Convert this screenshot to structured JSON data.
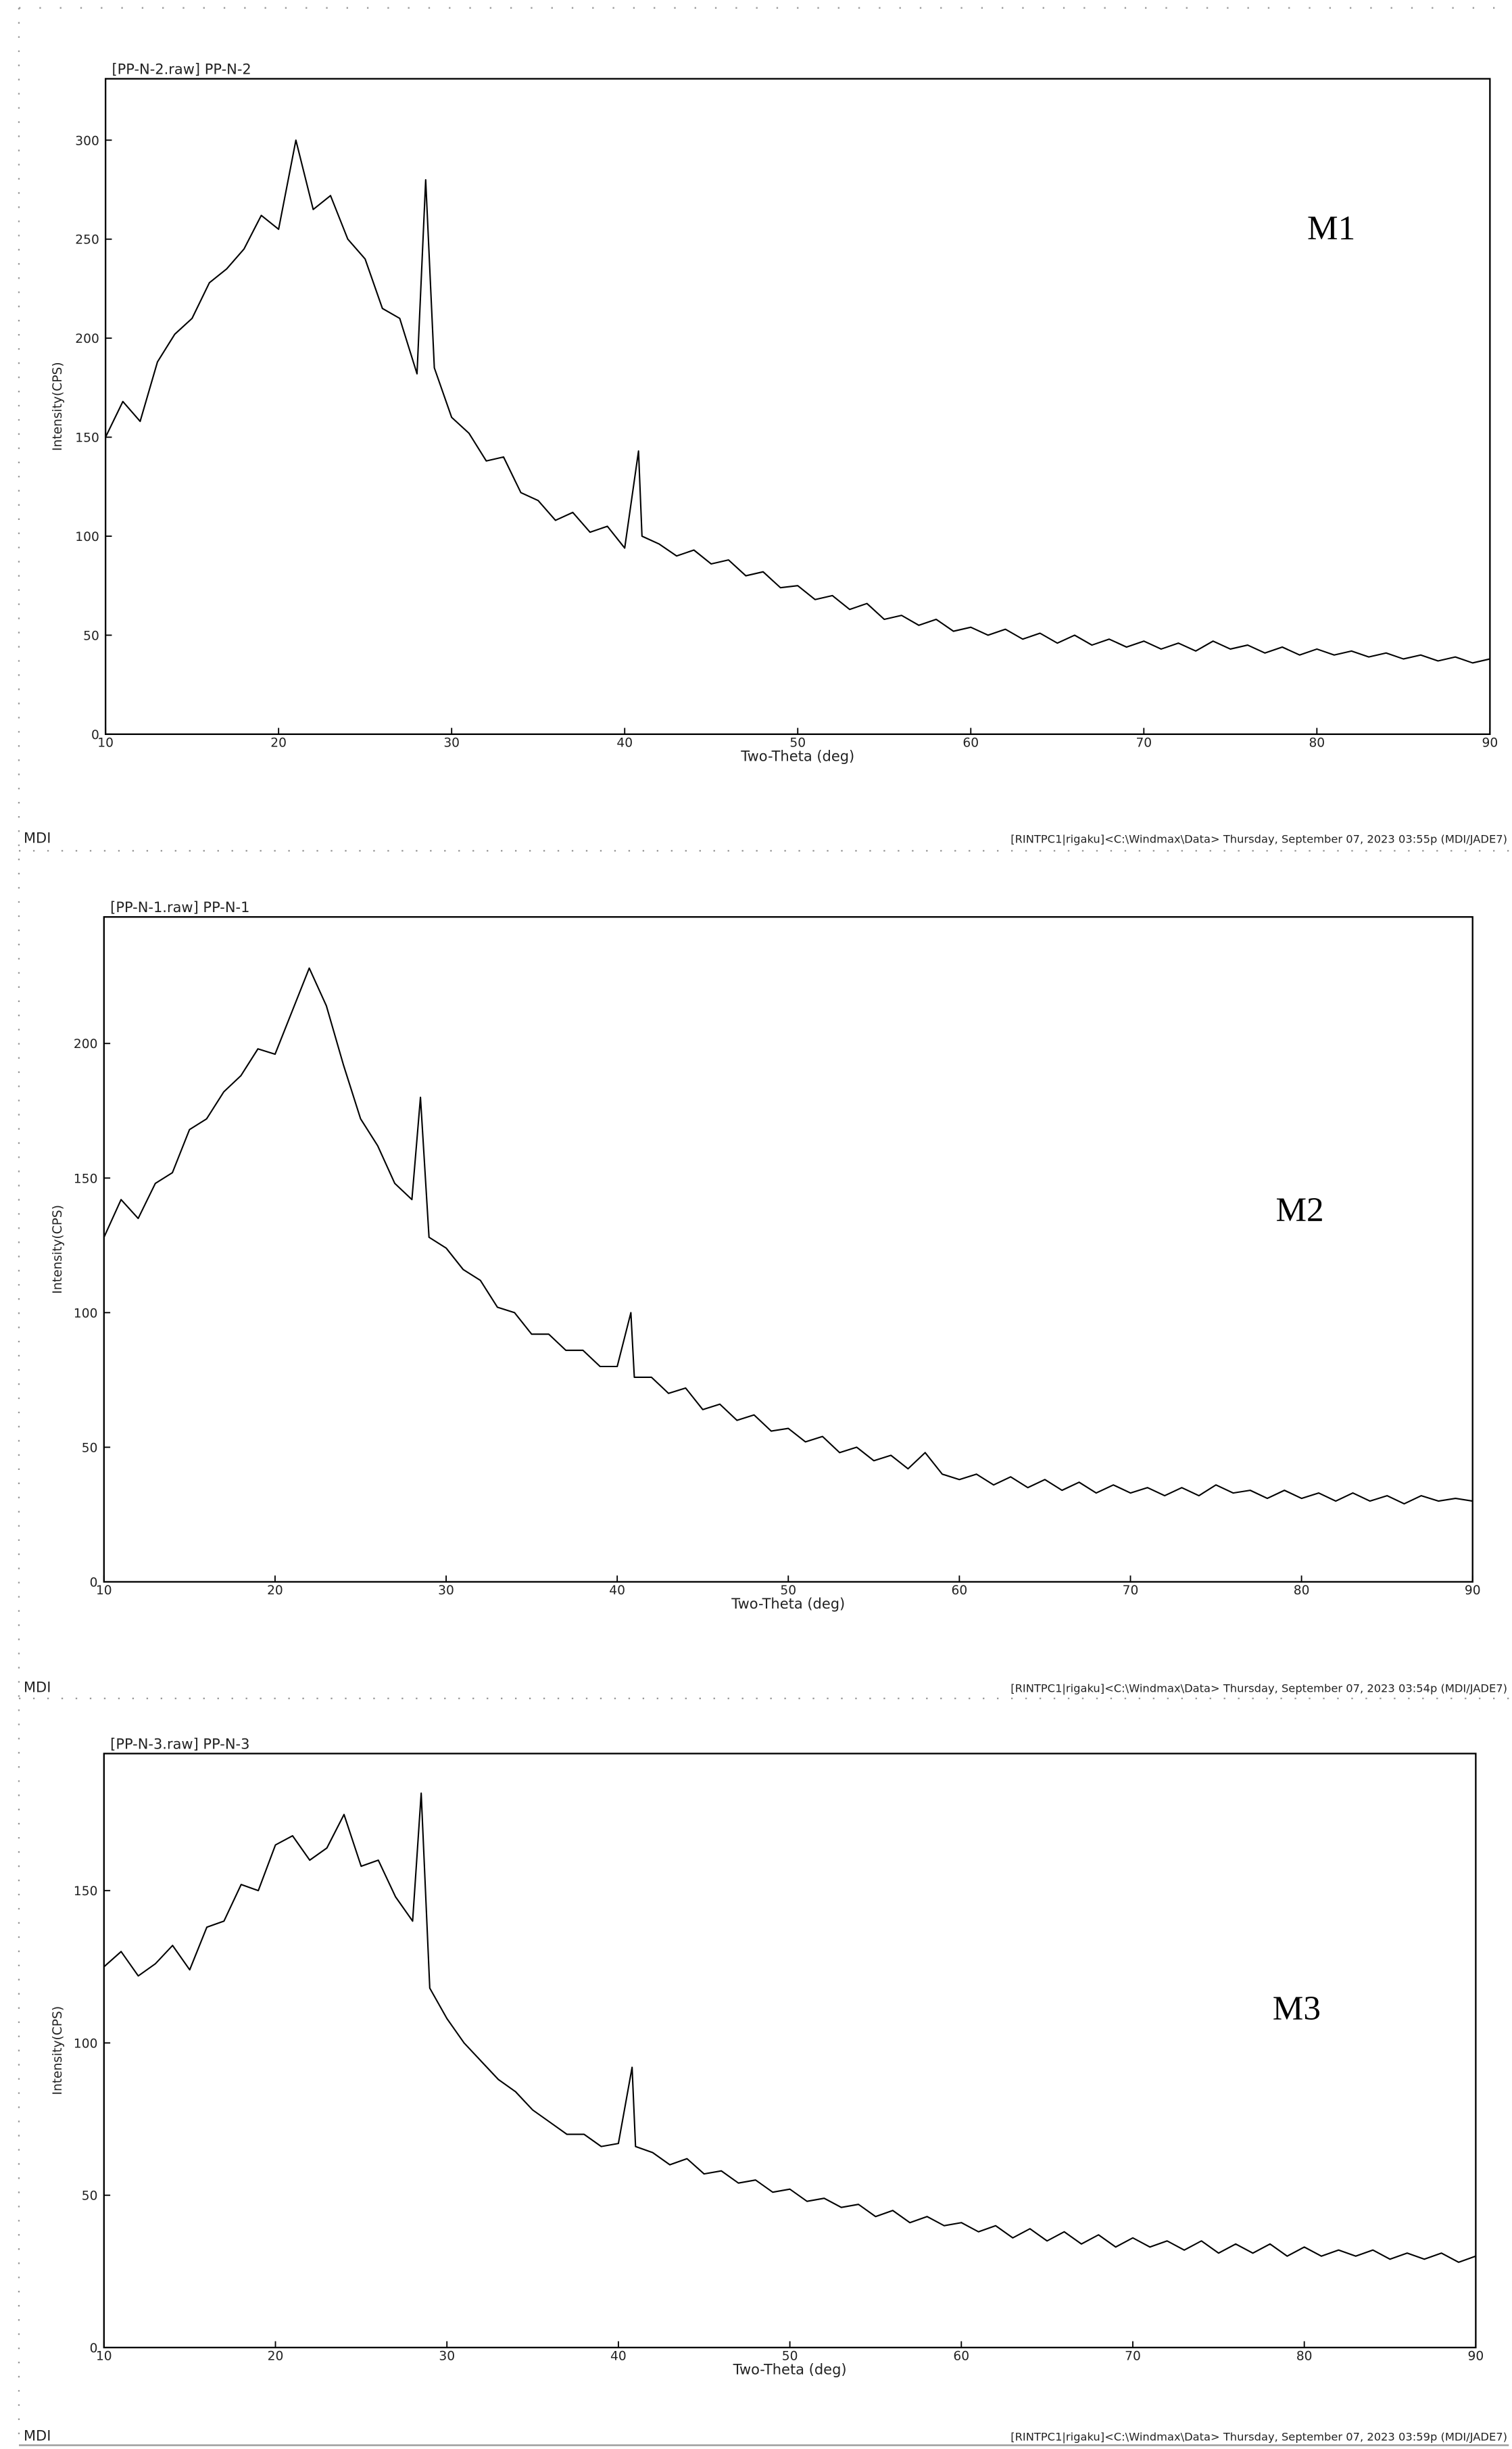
{
  "chart_data": [
    {
      "type": "line",
      "title": "[PP-N-2.raw] PP-N-2",
      "annotation": "M1",
      "xlabel": "Two-Theta (deg)",
      "ylabel": "Intensity(CPS)",
      "footer_left": "MDI",
      "footer_right": "[RINTPC1|rigaku]<C:\\Windmax\\Data> Thursday, September 07, 2023 03:55p (MDI/JADE7)",
      "color": "#000000",
      "xlim": [
        10,
        90
      ],
      "xticks": [
        10,
        20,
        30,
        40,
        50,
        60,
        70,
        80,
        90
      ],
      "ylim": [
        0,
        331
      ],
      "yticks": [
        0,
        50,
        100,
        150,
        200,
        250,
        300
      ],
      "x": [
        10,
        11,
        12,
        13,
        14,
        15,
        16,
        17,
        18,
        19,
        20,
        21,
        22,
        23,
        24,
        25,
        26,
        27,
        28,
        28.5,
        29,
        30,
        31,
        32,
        33,
        34,
        35,
        36,
        37,
        38,
        39,
        40,
        40.8,
        41,
        42,
        43,
        44,
        45,
        46,
        47,
        48,
        49,
        50,
        51,
        52,
        53,
        54,
        55,
        56,
        57,
        58,
        59,
        60,
        61,
        62,
        63,
        64,
        65,
        66,
        67,
        68,
        69,
        70,
        71,
        72,
        73,
        74,
        75,
        76,
        77,
        78,
        79,
        80,
        81,
        82,
        83,
        84,
        85,
        86,
        87,
        88,
        89,
        90
      ],
      "values": [
        150,
        168,
        158,
        188,
        202,
        210,
        228,
        235,
        245,
        262,
        255,
        300,
        265,
        272,
        250,
        240,
        215,
        210,
        182,
        280,
        185,
        160,
        152,
        138,
        140,
        122,
        118,
        108,
        112,
        102,
        105,
        94,
        143,
        100,
        96,
        90,
        93,
        86,
        88,
        80,
        82,
        74,
        75,
        68,
        70,
        63,
        66,
        58,
        60,
        55,
        58,
        52,
        54,
        50,
        53,
        48,
        51,
        46,
        50,
        45,
        48,
        44,
        47,
        43,
        46,
        42,
        47,
        43,
        45,
        41,
        44,
        40,
        43,
        40,
        42,
        39,
        41,
        38,
        40,
        37,
        39,
        36,
        38
      ]
    },
    {
      "type": "line",
      "title": "[PP-N-1.raw] PP-N-1",
      "annotation": "M2",
      "xlabel": "Two-Theta (deg)",
      "ylabel": "Intensity(CPS)",
      "footer_left": "MDI",
      "footer_right": "[RINTPC1|rigaku]<C:\\Windmax\\Data> Thursday, September 07, 2023 03:54p (MDI/JADE7)",
      "color": "#000000",
      "xlim": [
        10,
        90
      ],
      "xticks": [
        10,
        20,
        30,
        40,
        50,
        60,
        70,
        80,
        90
      ],
      "ylim": [
        0,
        247
      ],
      "yticks": [
        0,
        50,
        100,
        150,
        200
      ],
      "x": [
        10,
        11,
        12,
        13,
        14,
        15,
        16,
        17,
        18,
        19,
        20,
        21,
        22,
        23,
        24,
        25,
        26,
        27,
        28,
        28.5,
        29,
        30,
        31,
        32,
        33,
        34,
        35,
        36,
        37,
        38,
        39,
        40,
        40.8,
        41,
        42,
        43,
        44,
        45,
        46,
        47,
        48,
        49,
        50,
        51,
        52,
        53,
        54,
        55,
        56,
        57,
        58,
        59,
        60,
        61,
        62,
        63,
        64,
        65,
        66,
        67,
        68,
        69,
        70,
        71,
        72,
        73,
        74,
        75,
        76,
        77,
        78,
        79,
        80,
        81,
        82,
        83,
        84,
        85,
        86,
        87,
        88,
        89,
        90
      ],
      "values": [
        128,
        142,
        135,
        148,
        152,
        168,
        172,
        182,
        188,
        198,
        196,
        212,
        228,
        214,
        192,
        172,
        162,
        148,
        142,
        180,
        128,
        124,
        116,
        112,
        102,
        100,
        92,
        92,
        86,
        86,
        80,
        80,
        100,
        76,
        76,
        70,
        72,
        64,
        66,
        60,
        62,
        56,
        57,
        52,
        54,
        48,
        50,
        45,
        47,
        42,
        48,
        40,
        38,
        40,
        36,
        39,
        35,
        38,
        34,
        37,
        33,
        36,
        33,
        35,
        32,
        35,
        32,
        36,
        33,
        34,
        31,
        34,
        31,
        33,
        30,
        33,
        30,
        32,
        29,
        32,
        30,
        31,
        30
      ]
    },
    {
      "type": "line",
      "title": "[PP-N-3.raw] PP-N-3",
      "annotation": "M3",
      "xlabel": "Two-Theta (deg)",
      "ylabel": "Intensity(CPS)",
      "footer_left": "MDI",
      "footer_right": "[RINTPC1|rigaku]<C:\\Windmax\\Data> Thursday, September 07, 2023 03:59p (MDI/JADE7)",
      "color": "#000000",
      "xlim": [
        10,
        90
      ],
      "xticks": [
        10,
        20,
        30,
        40,
        50,
        60,
        70,
        80,
        90
      ],
      "ylim": [
        0,
        195
      ],
      "yticks": [
        0,
        50,
        100,
        150
      ],
      "x": [
        10,
        11,
        12,
        13,
        14,
        15,
        16,
        17,
        18,
        19,
        20,
        21,
        22,
        23,
        24,
        25,
        26,
        27,
        28,
        28.5,
        29,
        30,
        31,
        32,
        33,
        34,
        35,
        36,
        37,
        38,
        39,
        40,
        40.8,
        41,
        42,
        43,
        44,
        45,
        46,
        47,
        48,
        49,
        50,
        51,
        52,
        53,
        54,
        55,
        56,
        57,
        58,
        59,
        60,
        61,
        62,
        63,
        64,
        65,
        66,
        67,
        68,
        69,
        70,
        71,
        72,
        73,
        74,
        75,
        76,
        77,
        78,
        79,
        80,
        81,
        82,
        83,
        84,
        85,
        86,
        87,
        88,
        89,
        90
      ],
      "values": [
        125,
        130,
        122,
        126,
        132,
        124,
        138,
        140,
        152,
        150,
        165,
        168,
        160,
        164,
        175,
        158,
        160,
        148,
        140,
        182,
        118,
        108,
        100,
        94,
        88,
        84,
        78,
        74,
        70,
        70,
        66,
        67,
        92,
        66,
        64,
        60,
        62,
        57,
        58,
        54,
        55,
        51,
        52,
        48,
        49,
        46,
        47,
        43,
        45,
        41,
        43,
        40,
        41,
        38,
        40,
        36,
        39,
        35,
        38,
        34,
        37,
        33,
        36,
        33,
        35,
        32,
        35,
        31,
        34,
        31,
        34,
        30,
        33,
        30,
        32,
        30,
        32,
        29,
        31,
        29,
        31,
        28,
        30
      ]
    }
  ]
}
